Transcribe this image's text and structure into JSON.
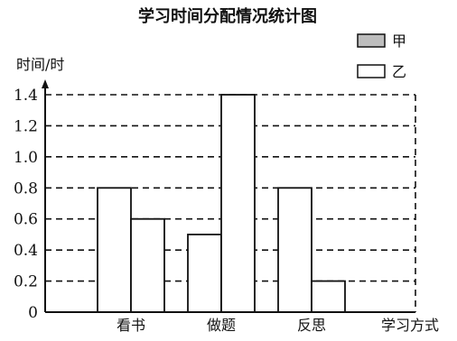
{
  "chart_data": {
    "type": "bar",
    "title": "学习时间分配情况统计图",
    "ylabel": "时间/时",
    "xlabel": "学习方式",
    "categories": [
      "看书",
      "做题",
      "反思"
    ],
    "series": [
      {
        "name": "甲",
        "values": [
          0.8,
          0.5,
          0.8
        ],
        "color": "#ffffff"
      },
      {
        "name": "乙",
        "values": [
          0.6,
          1.4,
          0.2
        ],
        "color": "#ffffff"
      }
    ],
    "ylim": [
      0,
      1.4
    ],
    "yticks": [
      "0",
      "0.2",
      "0.4",
      "0.6",
      "0.8",
      "1.0",
      "1.2",
      "1.4"
    ],
    "grid": "dashed",
    "legend": "top-right"
  }
}
